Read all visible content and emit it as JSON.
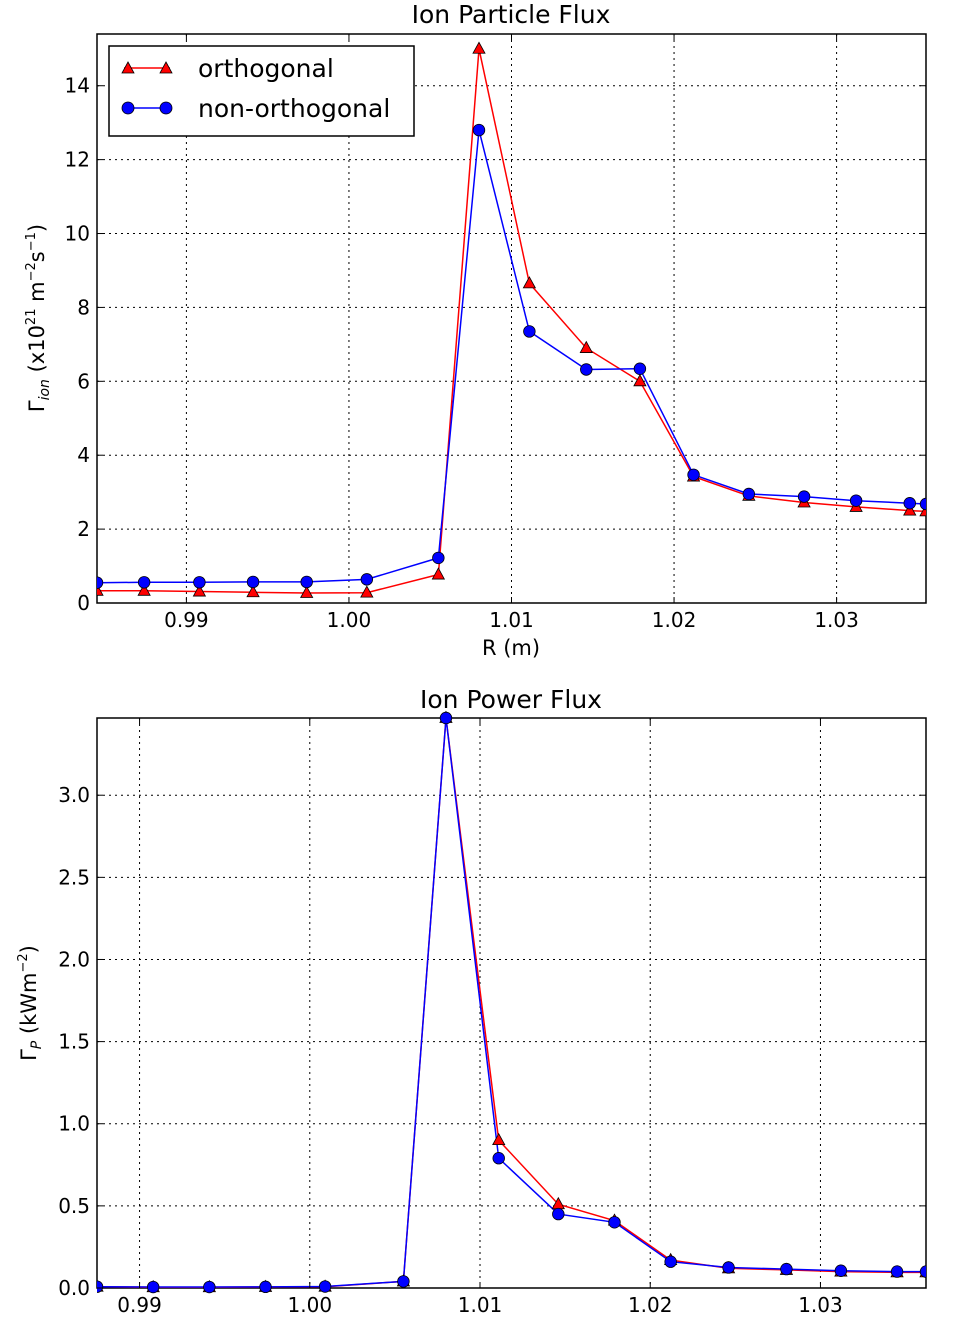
{
  "chart_data": [
    {
      "type": "line",
      "title": "Ion Particle Flux",
      "xlabel": "R (m)",
      "ylabel": "Γ_ion (x10^21 m^-2 s^-1)",
      "xlim": [
        0.9845,
        1.0355
      ],
      "ylim": [
        0,
        15.4
      ],
      "xticks": [
        0.99,
        1.0,
        1.01,
        1.02,
        1.03
      ],
      "xtick_labels": [
        "0.99",
        "1.00",
        "1.01",
        "1.02",
        "1.03"
      ],
      "yticks": [
        0,
        2,
        4,
        6,
        8,
        10,
        12,
        14
      ],
      "ytick_labels": [
        "0",
        "2",
        "4",
        "6",
        "8",
        "10",
        "12",
        "14"
      ],
      "grid": true,
      "legend": {
        "placement": "top-left",
        "entries": [
          "orthogonal",
          "non-orthogonal"
        ]
      },
      "series": [
        {
          "name": "orthogonal",
          "color": "#ff0000",
          "marker": "triangle",
          "x": [
            0.9845,
            0.9874,
            0.9908,
            0.9941,
            0.9974,
            1.0011,
            1.0055,
            1.008,
            1.0111,
            1.0146,
            1.0179,
            1.0212,
            1.0246,
            1.028,
            1.0312,
            1.0345,
            1.0355
          ],
          "y": [
            0.33,
            0.33,
            0.31,
            0.29,
            0.27,
            0.28,
            0.77,
            15.0,
            8.65,
            6.9,
            6.0,
            3.42,
            2.9,
            2.72,
            2.6,
            2.5,
            2.48
          ]
        },
        {
          "name": "non-orthogonal",
          "color": "#0000ff",
          "marker": "circle",
          "x": [
            0.9845,
            0.9874,
            0.9908,
            0.9941,
            0.9974,
            1.0011,
            1.0055,
            1.008,
            1.0111,
            1.0146,
            1.0179,
            1.0212,
            1.0246,
            1.028,
            1.0312,
            1.0345,
            1.0355
          ],
          "y": [
            0.55,
            0.56,
            0.56,
            0.57,
            0.57,
            0.64,
            1.22,
            12.8,
            7.35,
            6.32,
            6.34,
            3.47,
            2.95,
            2.88,
            2.77,
            2.7,
            2.68
          ]
        }
      ]
    },
    {
      "type": "line",
      "title": "Ion Power Flux",
      "xlabel": "",
      "ylabel": "Γ_P (kWm^-2)",
      "xlim": [
        0.9875,
        1.0362
      ],
      "ylim": [
        0,
        3.47
      ],
      "xticks": [
        0.99,
        1.0,
        1.01,
        1.02,
        1.03
      ],
      "xtick_labels": [
        "0.99",
        "1.00",
        "1.01",
        "1.02",
        "1.03"
      ],
      "yticks": [
        0,
        0.5,
        1.0,
        1.5,
        2.0,
        2.5,
        3.0
      ],
      "ytick_labels": [
        "0.0",
        "0.5",
        "1.0",
        "1.5",
        "2.0",
        "2.5",
        "3.0"
      ],
      "grid": true,
      "series": [
        {
          "name": "orthogonal",
          "color": "#ff0000",
          "marker": "triangle",
          "x": [
            0.9875,
            0.9908,
            0.9941,
            0.9974,
            1.0009,
            1.0055,
            1.008,
            1.0111,
            1.0146,
            1.0179,
            1.0212,
            1.0246,
            1.028,
            1.0312,
            1.0345,
            1.0362
          ],
          "y": [
            0.008,
            0.005,
            0.005,
            0.006,
            0.008,
            0.04,
            3.47,
            0.9,
            0.51,
            0.41,
            0.17,
            0.12,
            0.11,
            0.1,
            0.095,
            0.095
          ]
        },
        {
          "name": "non-orthogonal",
          "color": "#0000ff",
          "marker": "circle",
          "x": [
            0.9875,
            0.9908,
            0.9941,
            0.9974,
            1.0009,
            1.0055,
            1.008,
            1.0111,
            1.0146,
            1.0179,
            1.0212,
            1.0246,
            1.028,
            1.0312,
            1.0345,
            1.0362
          ],
          "y": [
            0.008,
            0.006,
            0.006,
            0.007,
            0.009,
            0.04,
            3.47,
            0.79,
            0.45,
            0.4,
            0.16,
            0.125,
            0.115,
            0.105,
            0.1,
            0.1
          ]
        }
      ]
    }
  ]
}
